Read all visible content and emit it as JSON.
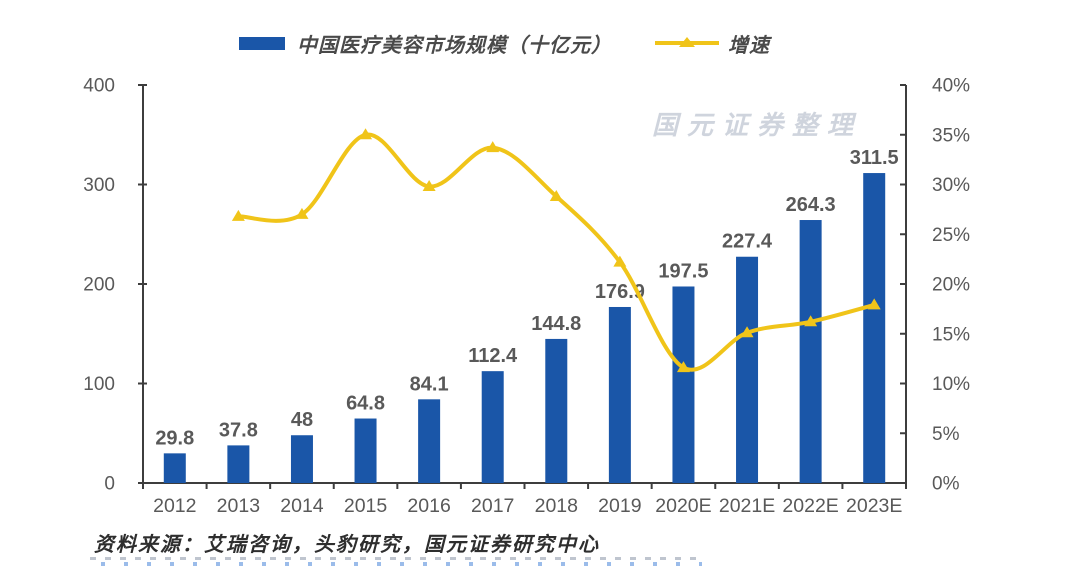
{
  "legend": {
    "bar_label": "中国医疗美容市场规模（十亿元）",
    "line_label": "增速"
  },
  "watermark": "国元证券整理",
  "source_note": "资料来源：艾瑞咨询，头豹研究，国元证券研究中心",
  "colors": {
    "bar": "#1A56A8",
    "line": "#F0C419",
    "axis": "#3d3d3d",
    "tick_label": "#595959",
    "value_label": "#595959",
    "legend_text": "#4a4a4a",
    "watermark": "#A9B2C2",
    "source": "#2e2e2e"
  },
  "chart_data": {
    "type": "bar+line",
    "title": "",
    "categories": [
      "2012",
      "2013",
      "2014",
      "2015",
      "2016",
      "2017",
      "2018",
      "2019",
      "2020E",
      "2021E",
      "2022E",
      "2023E"
    ],
    "series": [
      {
        "name": "中国医疗美容市场规模（十亿元）",
        "type": "bar",
        "axis": "left",
        "values": [
          29.8,
          37.8,
          48,
          64.8,
          84.1,
          112.4,
          144.8,
          176.9,
          197.5,
          227.4,
          264.3,
          311.5
        ],
        "value_labels": [
          "29.8",
          "37.8",
          "48",
          "64.8",
          "84.1",
          "112.4",
          "144.8",
          "176.9",
          "197.5",
          "227.4",
          "264.3",
          "311.5"
        ]
      },
      {
        "name": "增速",
        "type": "line",
        "axis": "right",
        "unit": "%",
        "values": [
          null,
          26.8,
          27.0,
          35.0,
          29.8,
          33.7,
          28.8,
          22.2,
          11.6,
          15.1,
          16.2,
          17.9
        ]
      }
    ],
    "left_axis": {
      "min": 0,
      "max": 400,
      "step": 100,
      "tick_labels": [
        "0",
        "100",
        "200",
        "300",
        "400"
      ]
    },
    "right_axis": {
      "min": 0,
      "max": 40,
      "step": 5,
      "tick_labels": [
        "0%",
        "5%",
        "10%",
        "15%",
        "20%",
        "25%",
        "30%",
        "35%",
        "40%"
      ]
    },
    "grid": false,
    "legend_position": "top"
  }
}
